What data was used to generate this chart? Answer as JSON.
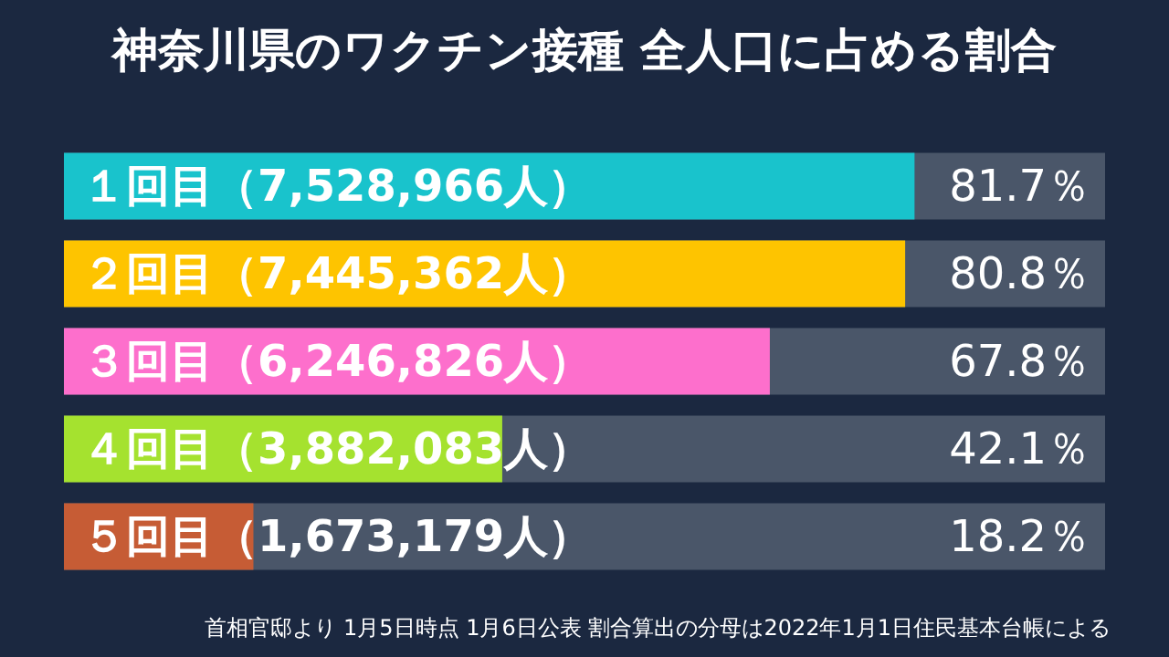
{
  "chart_data": {
    "type": "bar",
    "orientation": "horizontal",
    "title": "神奈川県のワクチン接種 全人口に占める割合",
    "categories": [
      "１回目（7,528,966人）",
      "２回目（7,445,362人）",
      "３回目（6,246,826人）",
      "４回目（3,882,083人）",
      "５回目（1,673,179人）"
    ],
    "values": [
      81.7,
      80.8,
      67.8,
      42.1,
      18.2
    ],
    "value_labels": [
      "81.7％",
      "80.8％",
      "67.8％",
      "42.1％",
      "18.2％"
    ],
    "colors": [
      "#19c3cc",
      "#fec400",
      "#fd6fcc",
      "#a5e22f",
      "#c65c35"
    ],
    "xlim": [
      0,
      100
    ],
    "tick_labels": "y",
    "annotations": [
      "首相官邸より 1月5日時点 1月6日公表 割合算出の分母は2022年1月1日住民基本台帳による"
    ]
  }
}
